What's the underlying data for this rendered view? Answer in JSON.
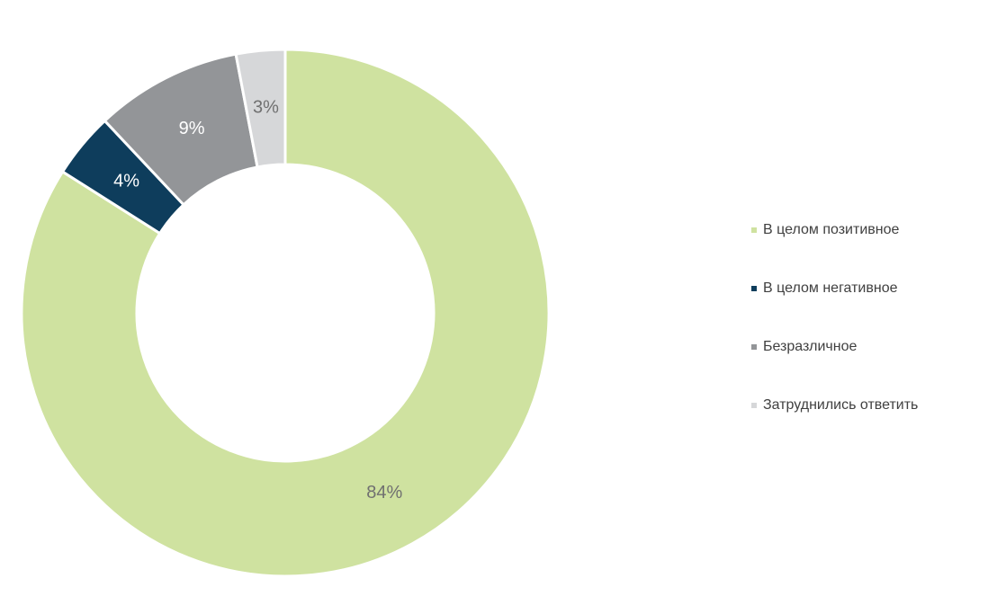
{
  "chart_data": {
    "type": "donut",
    "categories": [
      "В целом позитивное",
      "В целом негативное",
      "Безразличное",
      "Затруднились ответить"
    ],
    "values": [
      84,
      4,
      9,
      3
    ],
    "value_labels": [
      "84%",
      "4%",
      "9%",
      "3%"
    ],
    "colors": [
      "#cfe2a0",
      "#0e3d5c",
      "#939598",
      "#d6d7d9"
    ],
    "value_label_colors": [
      "#707070",
      "#ffffff",
      "#ffffff",
      "#707070"
    ]
  }
}
